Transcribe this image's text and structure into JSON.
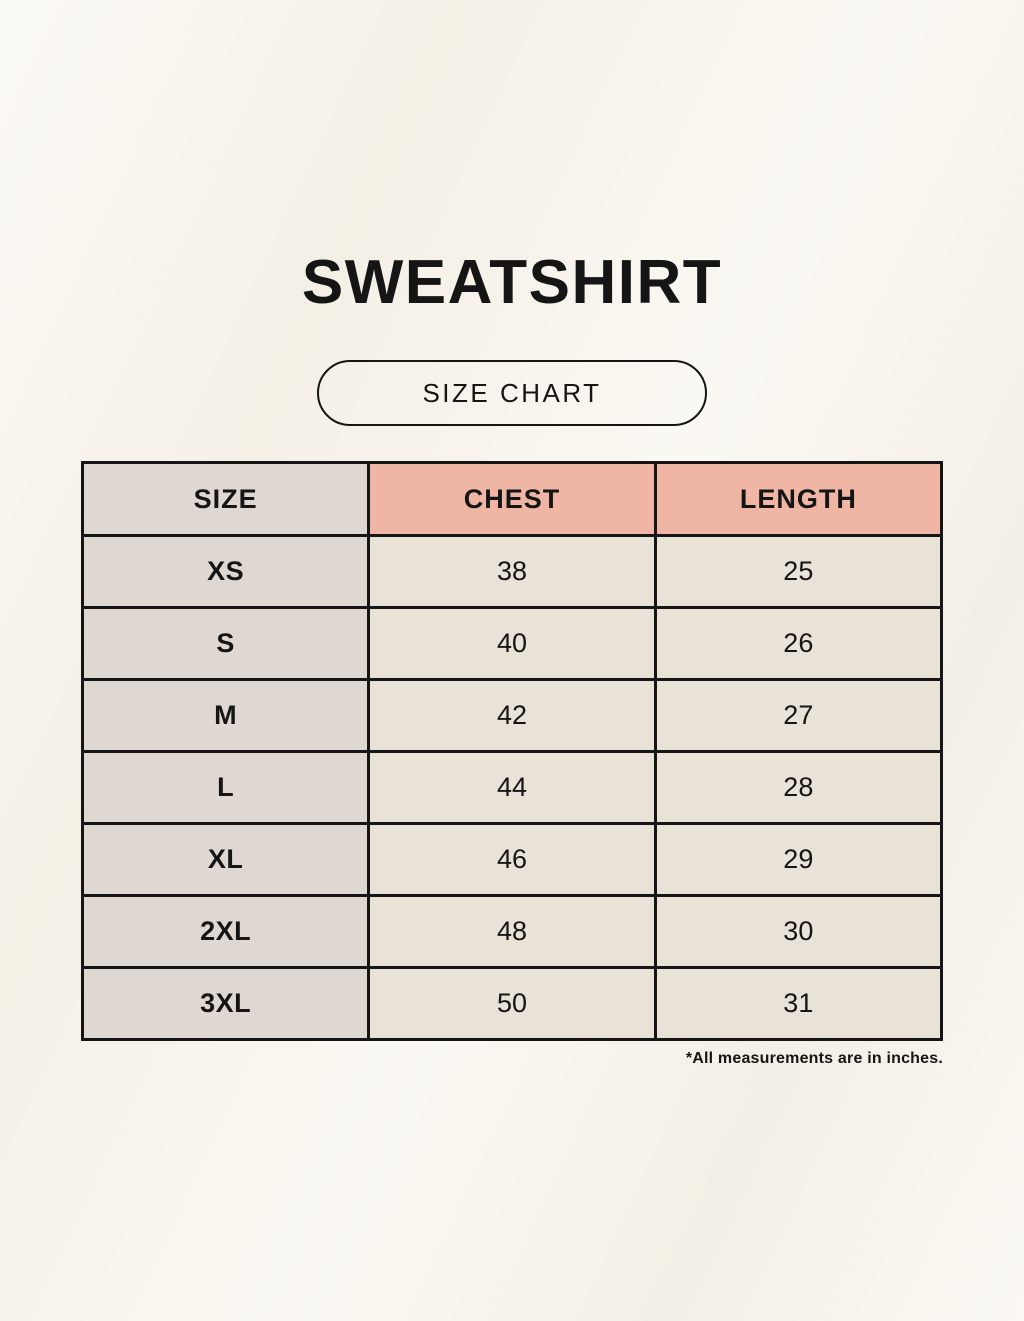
{
  "page": {
    "title": "SWEATSHIRT",
    "badge_label": "SIZE CHART",
    "footnote": "*All measurements are in inches."
  },
  "chart_data": {
    "type": "table",
    "title": "SWEATSHIRT SIZE CHART",
    "columns": [
      "SIZE",
      "CHEST",
      "LENGTH"
    ],
    "rows": [
      {
        "size": "XS",
        "chest": "38",
        "length": "25"
      },
      {
        "size": "S",
        "chest": "40",
        "length": "26"
      },
      {
        "size": "M",
        "chest": "42",
        "length": "27"
      },
      {
        "size": "L",
        "chest": "44",
        "length": "28"
      },
      {
        "size": "XL",
        "chest": "46",
        "length": "29"
      },
      {
        "size": "2XL",
        "chest": "48",
        "length": "30"
      },
      {
        "size": "3XL",
        "chest": "50",
        "length": "31"
      }
    ],
    "units": "inches"
  },
  "colors": {
    "background": "#f8f4ec",
    "header_size_bg": "#ded7d2",
    "header_accent_bg": "#f0b6a5",
    "row_label_bg": "#ded7d2",
    "cell_bg": "#e9e2d6",
    "border": "#151515",
    "text": "#151515"
  }
}
